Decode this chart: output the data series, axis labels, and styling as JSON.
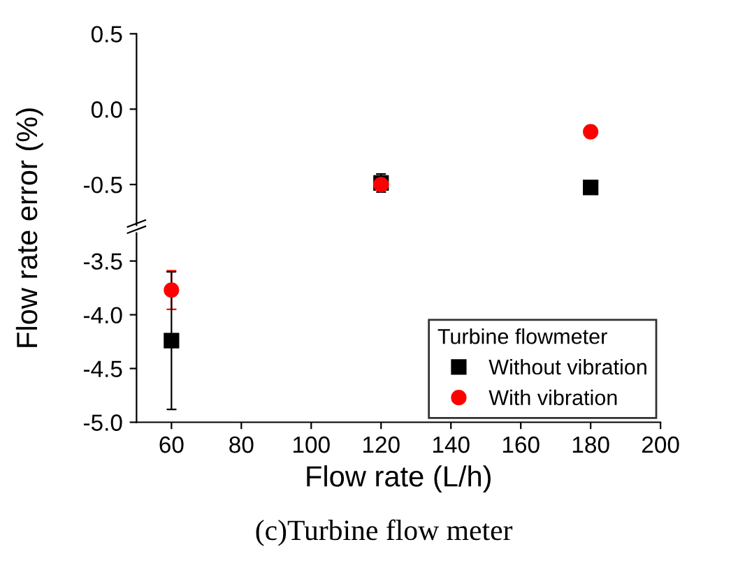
{
  "chart_data": [
    {
      "type": "scatter",
      "xlim": [
        50,
        200
      ],
      "xticks": [
        60,
        80,
        100,
        120,
        140,
        160,
        180,
        200
      ],
      "ylim": [
        -0.77,
        0.5
      ],
      "yticks": [
        0.5,
        {
          "value": 0,
          "label": "0.0"
        },
        -0.5
      ],
      "tick_labels": "y",
      "legend": false,
      "series": [
        {
          "color": "#000000",
          "marker": "square",
          "x": [
            120,
            180
          ],
          "values": [
            -0.49,
            -0.52
          ],
          "errors": [
            0.06,
            null
          ]
        },
        {
          "color": "#ff0000",
          "marker": "circle",
          "x": [
            120,
            180
          ],
          "values": [
            -0.5,
            -0.15
          ]
        }
      ]
    },
    {
      "type": "scatter",
      "xlim": [
        50,
        200
      ],
      "xticks": [
        60,
        80,
        100,
        120,
        140,
        160,
        180,
        200
      ],
      "ylim": [
        -5.0,
        -3.24
      ],
      "yticks": [
        {
          "value": -5,
          "label": "-5.0"
        },
        -4.5,
        {
          "value": -4,
          "label": "-4.0"
        },
        -3.5
      ],
      "xlabel": "Flow rate (L/h)",
      "ylabel": "Flow rate error (%)",
      "legend": "bottom right",
      "legend_title": "Turbine flowmeter",
      "annotations": [
        "(c)Turbine flow meter"
      ],
      "series": [
        {
          "name": "Without vibration",
          "color": "#000000",
          "marker": "square",
          "x": [
            60
          ],
          "values": [
            -4.24
          ],
          "errors": [
            0.64
          ]
        },
        {
          "name": "With vibration",
          "color": "#ff0000",
          "marker": "circle",
          "x": [
            60
          ],
          "values": [
            -3.77
          ],
          "errors": [
            0.18
          ]
        }
      ]
    }
  ]
}
